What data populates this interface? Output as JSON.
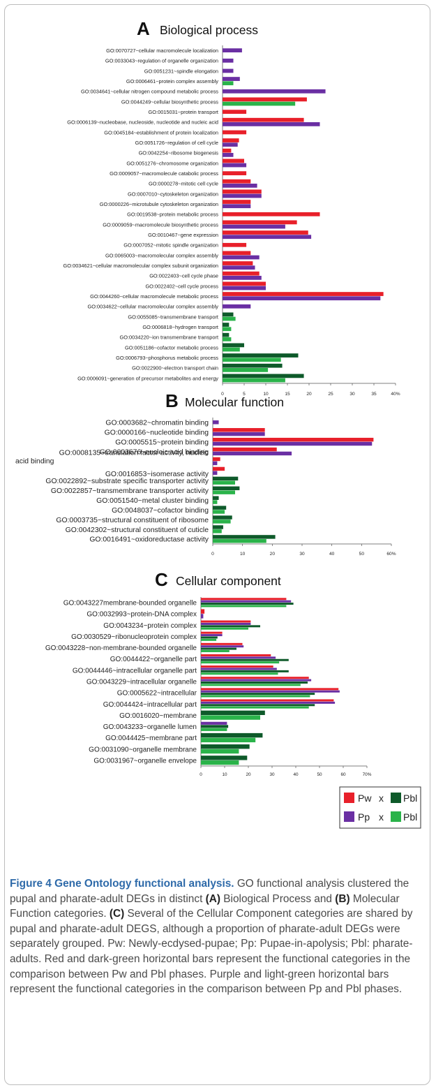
{
  "legend": {
    "pw": "Pw",
    "pbl": "Pbl",
    "pp": "Pp",
    "x": "x",
    "colors": {
      "pw_pbl_a": "#e8202a",
      "pw_pbl_b": "#0e5a2a",
      "pp_pbl_a": "#6a2fa3",
      "pp_pbl_b": "#2ab34a"
    }
  },
  "caption": {
    "title": "Figure 4 Gene Ontology functional analysis.",
    "text1": " GO functional analysis clustered the pupal and pharate-adult DEGs in distinct ",
    "labelA": "(A)",
    "text2": " Biological Process and ",
    "labelB": "(B)",
    "text3": " Molecular Function categories. ",
    "labelC": "(C)",
    "text4": " Several of the Cellular Component categories are shared by pupal and pharate-adult DEGS, although a proportion of pharate-adult DEGs were separately grouped. Pw: Newly-ecdysed-pupae; Pp: Pupae-in-apolysis; Pbl: pharate-adults. Red and dark-green horizontal bars represent the functional categories in the comparison between Pw and Pbl phases. Purple and light-green horizontal bars represent the functional categories in the comparison between Pp and Pbl phases."
  },
  "chart_data": [
    {
      "type": "bar",
      "orientation": "horizontal",
      "panel_letter": "A",
      "title": "Biological process",
      "xlim": [
        0,
        40
      ],
      "ticks": [
        "0",
        "5",
        "10",
        "15",
        "20",
        "25",
        "30",
        "35",
        "40%"
      ],
      "categories": [
        "GO:0070727~cellular macromolecule localization",
        "GO:0033043~regulation of organelle organization",
        "GO:0051231~spindle elongation",
        "GO:0006461~protein complex assembly",
        "GO:0034641~cellular nitrogen compound metabolic process",
        "GO:0044249~cellular biosynthetic process",
        "GO:0015031~protein transport",
        "GO:0006139~nucleobase, nucleoside, nucleotide and nucleic acid",
        "GO:0045184~establishment of protein localization",
        "GO:0051726~regulation of cell cycle",
        "GO:0042254~ribosome biogenesis",
        "GO:0051276~chromosome organization",
        "GO:0009057~macromolecule catabolic process",
        "GO:0000278~mitotic cell cycle",
        "GO:0007010~cytoskeleton organization",
        "GO:0000226~microtubule cytoskeleton organization",
        "GO:0019538~protein metabolic process",
        "GO:0009059~macromolecule biosynthetic process",
        "GO:0010467~gene expression",
        "GO:0007052~mitotic spindle organization",
        "GO:0065003~macromolecular complex assembly",
        "GO:0034621~cellular macromolecular complex subunit organization",
        "GO:0022403~cell cycle phase",
        "GO:0022402~cell cycle process",
        "GO:0044260~cellular macromolecule metabolic process",
        "GO:0034622~cellular macromolecular complex assembly",
        "GO:0055085~transmembrane transport",
        "GO:0006818~hydrogen transport",
        "GO:0034220~ion transmembrane transport",
        "GO:0051186~cofactor metabolic process",
        "GO:0006793~phosphorus metabolic process",
        "GO:0022900~electron transport chain",
        "GO:0006091~generation of precursor metabolites and energy"
      ],
      "series": [
        {
          "name": "Pw x Pbl",
          "color": "#e8202a",
          "values": [
            0,
            0,
            0,
            0,
            0,
            19.5,
            5.5,
            18.8,
            5.5,
            3.8,
            2.0,
            5.0,
            5.5,
            6.5,
            9.0,
            6.5,
            22.5,
            17.2,
            19.8,
            5.5,
            6.5,
            7.0,
            8.5,
            10.0,
            37.2,
            0,
            0,
            0,
            0,
            0,
            0,
            0,
            0
          ]
        },
        {
          "name": "Pp x Pbl",
          "color": "#6a2fa3",
          "values": [
            4.5,
            2.5,
            2.5,
            4.0,
            23.8,
            0,
            0,
            22.5,
            0,
            3.5,
            2.5,
            5.5,
            0,
            8.0,
            9.0,
            6.5,
            0,
            14.5,
            20.5,
            0,
            8.5,
            7.5,
            9.0,
            10.0,
            36.5,
            6.5,
            0,
            0,
            0,
            0,
            0,
            0,
            0
          ]
        },
        {
          "name": "Pw x Pbl",
          "color": "#0e5a2a",
          "values": [
            0,
            0,
            0,
            0,
            0,
            0,
            0,
            0,
            0,
            0,
            0,
            0,
            0,
            0,
            0,
            0,
            0,
            0,
            0,
            0,
            0,
            0,
            0,
            0,
            0,
            0,
            2.5,
            1.5,
            1.5,
            5.0,
            17.5,
            13.8,
            18.8
          ]
        },
        {
          "name": "Pp x Pbl",
          "color": "#2ab34a",
          "values": [
            0,
            0,
            0,
            2.5,
            0,
            16.8,
            0,
            0,
            0,
            0,
            0,
            0,
            0,
            0,
            0,
            0,
            0,
            0,
            0,
            0,
            0,
            0,
            0,
            0,
            0,
            0,
            3.0,
            2.0,
            2.0,
            4.0,
            13.5,
            10.5,
            14.5
          ]
        }
      ]
    },
    {
      "type": "bar",
      "orientation": "horizontal",
      "panel_letter": "B",
      "title": "Molecular function",
      "xlim": [
        0,
        60
      ],
      "ticks": [
        "0",
        "10",
        "20",
        "30",
        "40",
        "50",
        "60%"
      ],
      "categories": [
        "GO:0003682~chromatin binding",
        "GO:0000166~nucleotide binding",
        "GO:0005515~protein binding",
        "GO:0003676~nucleic acid binding",
        "GO:0008135~translation factor activity, nucleic acid binding",
        "GO:0016853~isomerase activity",
        "GO:0022892~substrate specific transporter activity",
        "GO:0022857~transmembrane transporter activity",
        "GO:0051540~metal cluster binding",
        "GO:0048037~cofactor binding",
        "GO:0003735~structural constituent of ribosome",
        "GO:0042302~structural constituent of cuticle",
        "GO:0016491~oxidoreductase activity"
      ],
      "series": [
        {
          "name": "Pw x Pbl",
          "color": "#e8202a",
          "values": [
            0,
            17.5,
            54.0,
            21.5,
            2.5,
            4.0,
            0,
            0,
            0,
            0,
            0,
            0,
            0
          ]
        },
        {
          "name": "Pp x Pbl",
          "color": "#6a2fa3",
          "values": [
            2.0,
            17.5,
            53.5,
            26.5,
            1.5,
            1.5,
            0,
            0,
            0,
            0,
            0,
            0,
            0
          ]
        },
        {
          "name": "Pw x Pbl",
          "color": "#0e5a2a",
          "values": [
            0,
            0,
            0,
            0,
            0,
            0,
            8.5,
            9.0,
            2.0,
            4.5,
            6.5,
            3.5,
            21.0
          ]
        },
        {
          "name": "Pp x Pbl",
          "color": "#2ab34a",
          "values": [
            0,
            0,
            0,
            0,
            0,
            0,
            7.5,
            7.5,
            1.5,
            4.0,
            6.0,
            3.0,
            18.0
          ]
        }
      ]
    },
    {
      "type": "bar",
      "orientation": "horizontal",
      "panel_letter": "C",
      "title": "Cellular component",
      "xlim": [
        0,
        70
      ],
      "ticks": [
        "0",
        "10",
        "20",
        "30",
        "40",
        "50",
        "60",
        "70%"
      ],
      "categories": [
        "GO:0043227membrane-bounded organelle",
        "GO:0032993~protein-DNA complex",
        "GO:0043234~protein complex",
        "GO:0030529~ribonucleoprotein complex",
        "GO:0043228~non-membrane-bounded organelle",
        "GO:0044422~organelle part",
        "GO:0044446~intracellular organelle part",
        "GO:0043229~intracellular organelle",
        "GO:0005622~intracellular",
        "GO:0044424~intracellular part",
        "GO:0016020~membrane",
        "GO:0043233~organelle lumen",
        "GO:0044425~membrane part",
        "GO:0031090~organelle membrane",
        "GO:0031967~organelle envelope"
      ],
      "series": [
        {
          "name": "Pw x Pbl",
          "color": "#e8202a",
          "values": [
            36,
            1.5,
            21,
            9,
            17.5,
            29.5,
            30.5,
            45.5,
            58,
            56,
            0,
            0,
            0,
            0,
            0
          ]
        },
        {
          "name": "Pp x Pbl",
          "color": "#6a2fa3",
          "values": [
            38,
            1,
            21,
            9,
            18,
            31.5,
            32,
            46.5,
            58.5,
            56.5,
            0,
            11,
            0,
            0,
            0
          ]
        },
        {
          "name": "Pw x Pbl",
          "color": "#0e5a2a",
          "values": [
            39,
            0,
            25,
            7,
            15,
            37,
            37,
            45,
            48,
            48,
            27,
            11.5,
            26,
            20.5,
            19.5
          ]
        },
        {
          "name": "Pp x Pbl",
          "color": "#2ab34a",
          "values": [
            36,
            0,
            20,
            6.5,
            12,
            33,
            32.5,
            42,
            46,
            45.5,
            25,
            11,
            23,
            16,
            16
          ]
        }
      ]
    }
  ]
}
